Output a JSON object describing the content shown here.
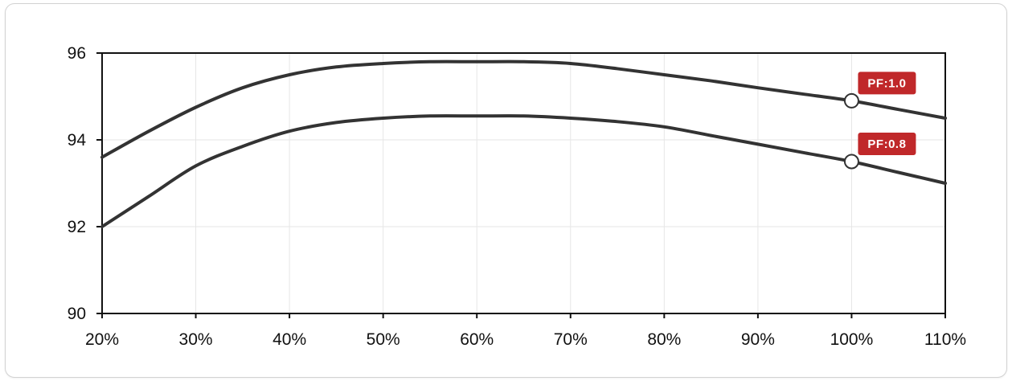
{
  "chart_data": {
    "type": "line",
    "title": "",
    "xlabel": "",
    "ylabel": "",
    "x": [
      20,
      25,
      30,
      35,
      40,
      45,
      50,
      55,
      60,
      65,
      70,
      75,
      80,
      85,
      90,
      95,
      100,
      105,
      110
    ],
    "x_tick_labels": [
      "20%",
      "30%",
      "40%",
      "50%",
      "60%",
      "70%",
      "80%",
      "90%",
      "100%",
      "110%"
    ],
    "y_tick_labels": [
      "90",
      "92",
      "94",
      "96"
    ],
    "xlim": [
      20,
      110
    ],
    "ylim": [
      90,
      96
    ],
    "grid": true,
    "series": [
      {
        "name": "PF:1.0",
        "values": [
          93.6,
          94.2,
          94.75,
          95.2,
          95.5,
          95.68,
          95.76,
          95.8,
          95.8,
          95.8,
          95.76,
          95.64,
          95.5,
          95.36,
          95.2,
          95.05,
          94.9,
          94.7,
          94.5
        ],
        "marker_x": 100,
        "marker_y": 94.9
      },
      {
        "name": "PF:0.8",
        "values": [
          92.0,
          92.7,
          93.4,
          93.85,
          94.2,
          94.4,
          94.5,
          94.55,
          94.55,
          94.55,
          94.5,
          94.42,
          94.3,
          94.1,
          93.9,
          93.7,
          93.5,
          93.25,
          93.0
        ],
        "marker_x": 100,
        "marker_y": 93.5
      }
    ],
    "colors": {
      "line": "#333333",
      "badge": "#c0282a",
      "grid": "#e6e6e6",
      "axis": "#111111"
    }
  }
}
